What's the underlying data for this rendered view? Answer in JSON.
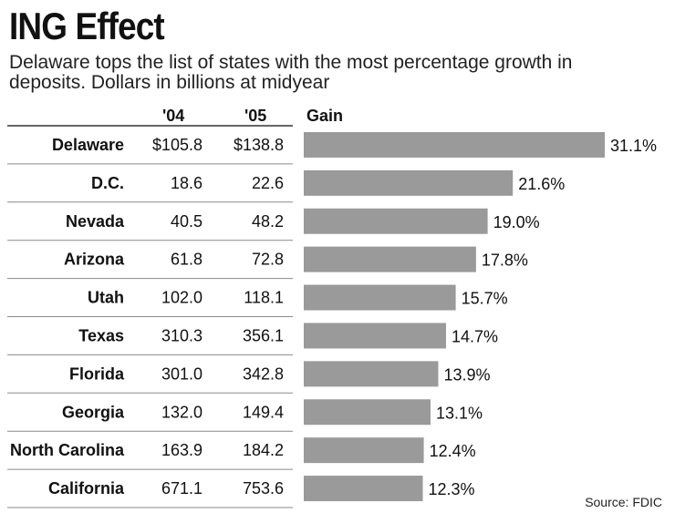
{
  "title": "ING Effect",
  "subtitle": "Delaware tops the list of states with the most percentage growth in deposits. Dollars in billions at midyear",
  "headers": {
    "c04": "'04",
    "c05": "'05",
    "gain": "Gain"
  },
  "source": "Source: FDIC",
  "colors": {
    "bar": "#9a9a9a",
    "rule": "#8a8a8a",
    "text": "#111111"
  },
  "chart_data": {
    "type": "bar",
    "orientation": "horizontal",
    "categories": [
      "Delaware",
      "D.C.",
      "Nevada",
      "Arizona",
      "Utah",
      "Texas",
      "Florida",
      "Georgia",
      "North Carolina",
      "California"
    ],
    "values": [
      31.1,
      21.6,
      19.0,
      17.8,
      15.7,
      14.7,
      13.9,
      13.1,
      12.4,
      12.3
    ],
    "value_labels": [
      "31.1%",
      "21.6%",
      "19.0%",
      "17.8%",
      "15.7%",
      "14.7%",
      "13.9%",
      "13.1%",
      "12.4%",
      "12.3%"
    ],
    "table": {
      "columns": [
        "'04",
        "'05"
      ],
      "rows": [
        [
          "$105.8",
          "$138.8"
        ],
        [
          "18.6",
          "22.6"
        ],
        [
          "40.5",
          "48.2"
        ],
        [
          "61.8",
          "72.8"
        ],
        [
          "102.0",
          "118.1"
        ],
        [
          "310.3",
          "356.1"
        ],
        [
          "301.0",
          "342.8"
        ],
        [
          "132.0",
          "149.4"
        ],
        [
          "163.9",
          "184.2"
        ],
        [
          "671.1",
          "753.6"
        ]
      ]
    },
    "title": "ING Effect",
    "xlabel": "",
    "ylabel": "",
    "grid": false
  }
}
